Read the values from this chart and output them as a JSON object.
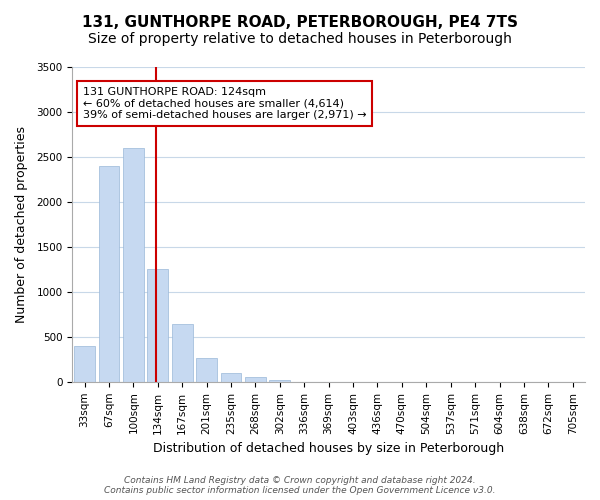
{
  "title": "131, GUNTHORPE ROAD, PETERBOROUGH, PE4 7TS",
  "subtitle": "Size of property relative to detached houses in Peterborough",
  "xlabel": "Distribution of detached houses by size in Peterborough",
  "ylabel": "Number of detached properties",
  "bar_labels": [
    "33sqm",
    "67sqm",
    "100sqm",
    "134sqm",
    "167sqm",
    "201sqm",
    "235sqm",
    "268sqm",
    "302sqm",
    "336sqm",
    "369sqm",
    "403sqm",
    "436sqm",
    "470sqm",
    "504sqm",
    "537sqm",
    "571sqm",
    "604sqm",
    "638sqm",
    "672sqm",
    "705sqm"
  ],
  "bar_values": [
    400,
    2400,
    2600,
    1250,
    640,
    260,
    100,
    50,
    25,
    0,
    0,
    0,
    0,
    0,
    0,
    0,
    0,
    0,
    0,
    0,
    0
  ],
  "bar_color": "#c6d9f1",
  "bar_edge_color": "#9ab8d8",
  "highlight_bar_index": 3,
  "highlight_color": "#cc0000",
  "ylim": [
    0,
    3500
  ],
  "yticks": [
    0,
    500,
    1000,
    1500,
    2000,
    2500,
    3000,
    3500
  ],
  "annotation_title": "131 GUNTHORPE ROAD: 124sqm",
  "annotation_line1": "← 60% of detached houses are smaller (4,614)",
  "annotation_line2": "39% of semi-detached houses are larger (2,971) →",
  "annotation_box_color": "#ffffff",
  "annotation_box_edge": "#cc0000",
  "footer_line1": "Contains HM Land Registry data © Crown copyright and database right 2024.",
  "footer_line2": "Contains public sector information licensed under the Open Government Licence v3.0.",
  "bg_color": "#ffffff",
  "grid_color": "#c8d8e8",
  "title_fontsize": 11,
  "subtitle_fontsize": 10,
  "axis_label_fontsize": 9,
  "tick_fontsize": 7.5,
  "footer_fontsize": 6.5
}
